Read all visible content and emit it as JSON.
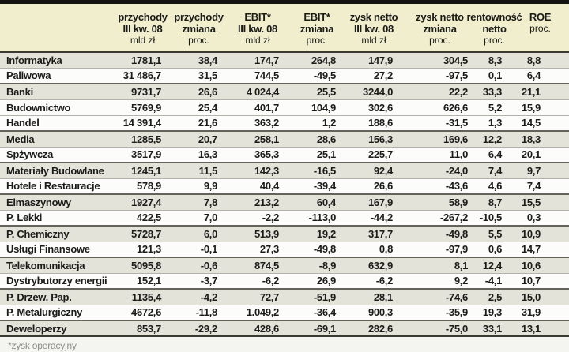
{
  "meta": {
    "colors": {
      "top_bar": "#141414",
      "header_bg": "#f0eecd",
      "shaded_row_bg": "#e3e3da",
      "plain_row_bg": "#fcfcfa",
      "rule_dark": "#3a3a35",
      "rule_light": "#b3b3ac",
      "footnote_text": "#8b8b86"
    }
  },
  "table": {
    "header": {
      "c1": {
        "l1": "przychody",
        "l2": "III kw. 08",
        "unit": "mld zł"
      },
      "c2": {
        "l1": "przychody",
        "l2": "zmiana",
        "unit": "proc."
      },
      "c3": {
        "l1": "EBIT*",
        "l2": "III kw. 08",
        "unit": "mld zł"
      },
      "c4": {
        "l1": "EBIT*",
        "l2": "zmiana",
        "unit": "proc."
      },
      "c5": {
        "l1": "zysk netto",
        "l2": "III kw. 08",
        "unit": "mld zł"
      },
      "c6": {
        "l1": "zysk netto",
        "l2": "zmiana",
        "unit": "proc."
      },
      "c7": {
        "l1": "rentowność",
        "l2": "netto",
        "unit": "proc."
      },
      "c8": {
        "l1": "ROE",
        "l2": "proc.",
        "unit": ""
      }
    },
    "rows": [
      {
        "name": "Informatyka",
        "shaded": true,
        "values": [
          "1781,1",
          "38,4",
          "174,7",
          "264,8",
          "147,9",
          "304,5",
          "8,3",
          "8,8"
        ]
      },
      {
        "name": "Paliwowa",
        "shaded": false,
        "values": [
          "31 486,7",
          "31,5",
          "744,5",
          "-49,5",
          "27,2",
          "-97,5",
          "0,1",
          "6,4"
        ]
      },
      {
        "name": "Banki",
        "shaded": true,
        "values": [
          "9731,7",
          "26,6",
          "4 024,4",
          "25,5",
          "3244,0",
          "22,2",
          "33,3",
          "21,1"
        ]
      },
      {
        "name": "Budownictwo",
        "shaded": false,
        "values": [
          "5769,9",
          "25,4",
          "401,7",
          "104,9",
          "302,6",
          "626,6",
          "5,2",
          "15,9"
        ]
      },
      {
        "name": "Handel",
        "shaded": false,
        "values": [
          "14 391,4",
          "21,6",
          "363,2",
          "1,2",
          "188,6",
          "-31,5",
          "1,3",
          "14,5"
        ]
      },
      {
        "name": "Media",
        "shaded": true,
        "values": [
          "1285,5",
          "20,7",
          "258,1",
          "28,6",
          "156,3",
          "169,6",
          "12,2",
          "18,3"
        ]
      },
      {
        "name": "Spżywcza",
        "shaded": false,
        "values": [
          "3517,9",
          "16,3",
          "365,3",
          "25,1",
          "225,7",
          "11,0",
          "6,4",
          "20,1"
        ]
      },
      {
        "name": "Materiały Budowlane",
        "shaded": true,
        "values": [
          "1245,1",
          "11,5",
          "142,3",
          "-16,5",
          "92,4",
          "-24,0",
          "7,4",
          "9,7"
        ]
      },
      {
        "name": "Hotele i Restauracje",
        "shaded": false,
        "values": [
          "578,9",
          "9,9",
          "40,4",
          "-39,4",
          "26,6",
          "-43,6",
          "4,6",
          "7,4"
        ]
      },
      {
        "name": "Elmaszynowy",
        "shaded": true,
        "values": [
          "1927,4",
          "7,8",
          "213,2",
          "60,4",
          "167,9",
          "58,9",
          "8,7",
          "15,5"
        ]
      },
      {
        "name": "P. Lekki",
        "shaded": false,
        "values": [
          "422,5",
          "7,0",
          "-2,2",
          "-113,0",
          "-44,2",
          "-267,2",
          "-10,5",
          "0,3"
        ]
      },
      {
        "name": "P. Chemiczny",
        "shaded": true,
        "values": [
          "5728,7",
          "6,0",
          "513,9",
          "19,2",
          "317,7",
          "-49,8",
          "5,5",
          "10,9"
        ]
      },
      {
        "name": "Usługi Finansowe",
        "shaded": false,
        "values": [
          "121,3",
          "-0,1",
          "27,3",
          "-49,8",
          "0,8",
          "-97,9",
          "0,6",
          "14,7"
        ]
      },
      {
        "name": "Telekomunikacja",
        "shaded": true,
        "values": [
          "5095,8",
          "-0,6",
          "874,5",
          "-8,9",
          "632,9",
          "8,1",
          "12,4",
          "10,6"
        ]
      },
      {
        "name": "Dystrybutorzy energii",
        "shaded": false,
        "values": [
          "152,1",
          "-3,7",
          "-6,2",
          "26,9",
          "-6,2",
          "9,2",
          "-4,1",
          "10,7"
        ]
      },
      {
        "name": "P. Drzew. Pap.",
        "shaded": true,
        "values": [
          "1135,4",
          "-4,2",
          "72,7",
          "-51,9",
          "28,1",
          "-74,6",
          "2,5",
          "15,0"
        ]
      },
      {
        "name": "P. Metalurgiczny",
        "shaded": false,
        "values": [
          "4672,6",
          "-11,8",
          "1.049,2",
          "-36,4",
          "900,3",
          "-35,9",
          "19,3",
          "31,9"
        ]
      },
      {
        "name": "Deweloperzy",
        "shaded": true,
        "values": [
          "853,7",
          "-29,2",
          "428,6",
          "-69,1",
          "282,6",
          "-75,0",
          "33,1",
          "13,1"
        ]
      }
    ],
    "footnote": "*zysk operacyjny"
  }
}
